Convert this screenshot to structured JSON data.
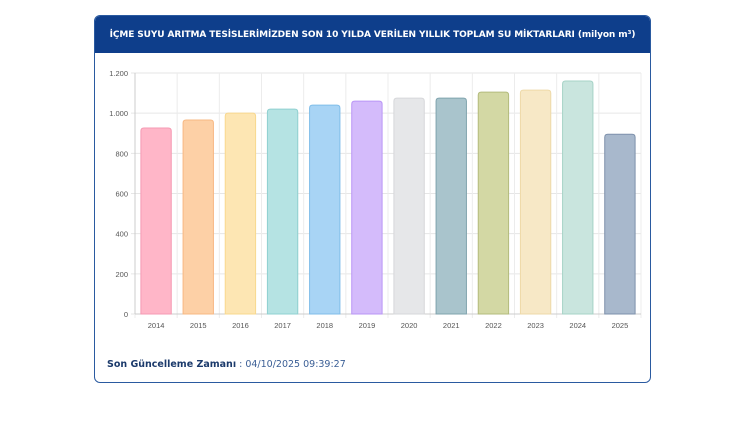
{
  "header": {
    "title": "İÇME SUYU ARITMA TESİSLERİMİZDEN SON 10 YILDA VERİLEN YILLIK TOPLAM SU MİKTARLARI (milyon m³)"
  },
  "footer": {
    "label": "Son Güncelleme Zamanı",
    "separator": " : ",
    "value": "04/10/2025 09:39:27"
  },
  "chart_data": {
    "type": "bar",
    "title": "İÇME SUYU ARITMA TESİSLERİMİZDEN SON 10 YILDA VERİLEN YILLIK TOPLAM SU MİKTARLARI (milyon m³)",
    "categories": [
      "2014",
      "2015",
      "2016",
      "2017",
      "2018",
      "2019",
      "2020",
      "2021",
      "2022",
      "2023",
      "2024",
      "2025"
    ],
    "values": [
      926,
      966,
      1000,
      1020,
      1040,
      1060,
      1075,
      1075,
      1105,
      1115,
      1160,
      895
    ],
    "colors": [
      "#ffb6c8",
      "#fdd0a6",
      "#fde6b3",
      "#b5e3e3",
      "#a8d4f5",
      "#d4bbfb",
      "#e6e7e9",
      "#a9c4cc",
      "#d3d8a4",
      "#f7e8c6",
      "#c9e5de",
      "#a8b8cc"
    ],
    "borders": [
      "#f59ab3",
      "#f7b883",
      "#f8d88e",
      "#8fd0d0",
      "#7fbde9",
      "#b995f6",
      "#d6d7da",
      "#7fa3ad",
      "#b3bb7c",
      "#eed9a8",
      "#a6d3c7",
      "#7d90ab"
    ],
    "yticks": [
      0,
      200,
      400,
      600,
      800,
      1000,
      1200
    ],
    "ytick_labels": [
      "0",
      "200",
      "400",
      "600",
      "800",
      "1.000",
      "1.200"
    ],
    "ylim": [
      0,
      1200
    ],
    "xlabel": "",
    "ylabel": "",
    "grid": true,
    "legend": "none"
  }
}
